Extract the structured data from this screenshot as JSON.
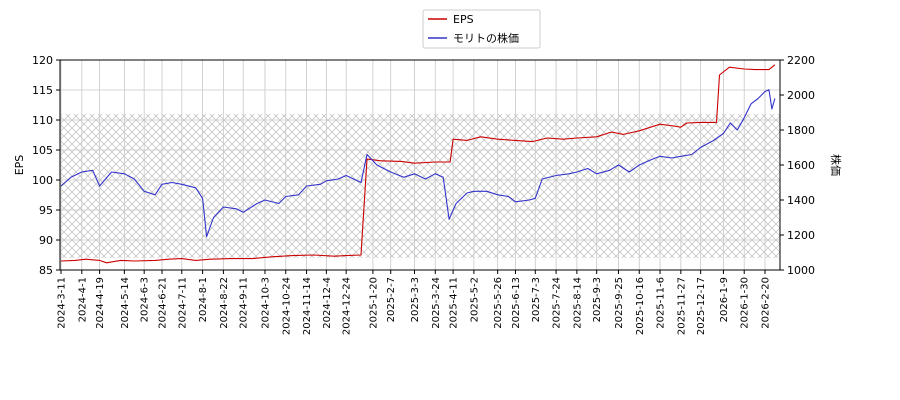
{
  "chart_data": {
    "type": "line",
    "title": "",
    "legend": {
      "placement": "top-center",
      "entries": [
        {
          "name": "EPS",
          "color": "#cc0000"
        },
        {
          "name": "モリトの株価",
          "color": "#3333cc"
        }
      ]
    },
    "grid": true,
    "x_tick_labels": [
      "2024-3-11",
      "2024-4-1",
      "2024-4-19",
      "2024-5-14",
      "2024-6-3",
      "2024-6-21",
      "2024-7-11",
      "2024-8-1",
      "2024-8-22",
      "2024-9-11",
      "2024-10-3",
      "2024-10-24",
      "2024-11-14",
      "2024-12-4",
      "2024-12-24",
      "2025-1-20",
      "2025-2-7",
      "2025-3-3",
      "2025-3-24",
      "2025-4-11",
      "2025-5-2",
      "2025-5-26",
      "2025-6-13",
      "2025-7-3",
      "2025-7-24",
      "2025-8-14",
      "2025-9-3",
      "2025-9-25",
      "2025-10-16",
      "2025-11-6",
      "2025-11-27",
      "2025-12-17",
      "2026-1-9",
      "2026-1-30",
      "2026-2-20"
    ],
    "left_axis": {
      "label": "EPS",
      "ylim": [
        85,
        120
      ],
      "ticks": [
        85,
        90,
        95,
        100,
        105,
        110,
        115,
        120
      ]
    },
    "right_axis": {
      "label": "株価",
      "ylim": [
        1000,
        2200
      ],
      "ticks": [
        1000,
        1200,
        1400,
        1600,
        1800,
        2000,
        2200
      ]
    },
    "series": [
      {
        "name": "EPS",
        "axis": "left",
        "color": "#cc0000",
        "points": [
          [
            "2024-3-11",
            86.5
          ],
          [
            "2024-3-25",
            86.6
          ],
          [
            "2024-4-5",
            86.8
          ],
          [
            "2024-4-19",
            86.6
          ],
          [
            "2024-4-26",
            86.2
          ],
          [
            "2024-5-10",
            86.6
          ],
          [
            "2024-5-24",
            86.5
          ],
          [
            "2024-6-14",
            86.6
          ],
          [
            "2024-6-28",
            86.8
          ],
          [
            "2024-7-11",
            86.9
          ],
          [
            "2024-7-25",
            86.6
          ],
          [
            "2024-8-9",
            86.8
          ],
          [
            "2024-8-30",
            86.9
          ],
          [
            "2024-9-20",
            86.9
          ],
          [
            "2024-10-10",
            87.2
          ],
          [
            "2024-10-31",
            87.4
          ],
          [
            "2024-11-21",
            87.5
          ],
          [
            "2024-12-12",
            87.3
          ],
          [
            "2024-12-24",
            87.4
          ],
          [
            "2025-1-8",
            87.5
          ],
          [
            "2025-1-14",
            103.5
          ],
          [
            "2025-1-28",
            103.2
          ],
          [
            "2025-2-18",
            103.1
          ],
          [
            "2025-3-3",
            102.8
          ],
          [
            "2025-3-24",
            103.0
          ],
          [
            "2025-4-8",
            103.0
          ],
          [
            "2025-4-11",
            106.8
          ],
          [
            "2025-4-25",
            106.6
          ],
          [
            "2025-5-9",
            107.2
          ],
          [
            "2025-5-26",
            106.8
          ],
          [
            "2025-6-13",
            106.6
          ],
          [
            "2025-6-30",
            106.4
          ],
          [
            "2025-7-15",
            107.0
          ],
          [
            "2025-7-31",
            106.8
          ],
          [
            "2025-8-14",
            107.0
          ],
          [
            "2025-9-3",
            107.2
          ],
          [
            "2025-9-18",
            108.0
          ],
          [
            "2025-9-30",
            107.6
          ],
          [
            "2025-10-16",
            108.2
          ],
          [
            "2025-11-6",
            109.3
          ],
          [
            "2025-11-20",
            109.0
          ],
          [
            "2025-11-27",
            108.8
          ],
          [
            "2025-12-3",
            109.5
          ],
          [
            "2025-12-17",
            109.6
          ],
          [
            "2026-1-2",
            109.6
          ],
          [
            "2026-1-5",
            117.5
          ],
          [
            "2026-1-15",
            118.8
          ],
          [
            "2026-1-30",
            118.5
          ],
          [
            "2026-2-10",
            118.4
          ],
          [
            "2026-2-24",
            118.4
          ],
          [
            "2026-3-2",
            119.2
          ]
        ]
      },
      {
        "name": "モリトの株価",
        "axis": "right",
        "color": "#3333cc",
        "points": [
          [
            "2024-3-11",
            1480
          ],
          [
            "2024-3-21",
            1530
          ],
          [
            "2024-4-1",
            1560
          ],
          [
            "2024-4-12",
            1570
          ],
          [
            "2024-4-19",
            1480
          ],
          [
            "2024-5-1",
            1560
          ],
          [
            "2024-5-14",
            1550
          ],
          [
            "2024-5-24",
            1520
          ],
          [
            "2024-6-3",
            1450
          ],
          [
            "2024-6-14",
            1430
          ],
          [
            "2024-6-21",
            1490
          ],
          [
            "2024-7-1",
            1500
          ],
          [
            "2024-7-11",
            1490
          ],
          [
            "2024-7-25",
            1470
          ],
          [
            "2024-8-1",
            1410
          ],
          [
            "2024-8-5",
            1190
          ],
          [
            "2024-8-12",
            1300
          ],
          [
            "2024-8-22",
            1360
          ],
          [
            "2024-9-4",
            1350
          ],
          [
            "2024-9-11",
            1330
          ],
          [
            "2024-9-25",
            1380
          ],
          [
            "2024-10-3",
            1400
          ],
          [
            "2024-10-17",
            1380
          ],
          [
            "2024-10-24",
            1420
          ],
          [
            "2024-11-6",
            1430
          ],
          [
            "2024-11-14",
            1480
          ],
          [
            "2024-11-28",
            1490
          ],
          [
            "2024-12-4",
            1510
          ],
          [
            "2024-12-16",
            1520
          ],
          [
            "2024-12-24",
            1540
          ],
          [
            "2025-1-8",
            1500
          ],
          [
            "2025-1-14",
            1660
          ],
          [
            "2025-1-24",
            1600
          ],
          [
            "2025-2-7",
            1560
          ],
          [
            "2025-2-20",
            1530
          ],
          [
            "2025-3-3",
            1550
          ],
          [
            "2025-3-14",
            1520
          ],
          [
            "2025-3-24",
            1550
          ],
          [
            "2025-4-1",
            1530
          ],
          [
            "2025-4-7",
            1290
          ],
          [
            "2025-4-14",
            1380
          ],
          [
            "2025-4-25",
            1440
          ],
          [
            "2025-5-2",
            1450
          ],
          [
            "2025-5-15",
            1450
          ],
          [
            "2025-5-26",
            1430
          ],
          [
            "2025-6-6",
            1420
          ],
          [
            "2025-6-13",
            1390
          ],
          [
            "2025-6-27",
            1400
          ],
          [
            "2025-7-3",
            1410
          ],
          [
            "2025-7-10",
            1520
          ],
          [
            "2025-7-24",
            1540
          ],
          [
            "2025-8-6",
            1550
          ],
          [
            "2025-8-14",
            1560
          ],
          [
            "2025-8-25",
            1580
          ],
          [
            "2025-9-3",
            1550
          ],
          [
            "2025-9-16",
            1570
          ],
          [
            "2025-9-25",
            1600
          ],
          [
            "2025-10-6",
            1560
          ],
          [
            "2025-10-16",
            1600
          ],
          [
            "2025-10-28",
            1630
          ],
          [
            "2025-11-6",
            1650
          ],
          [
            "2025-11-18",
            1640
          ],
          [
            "2025-11-27",
            1650
          ],
          [
            "2025-12-8",
            1660
          ],
          [
            "2025-12-17",
            1700
          ],
          [
            "2025-12-30",
            1740
          ],
          [
            "2026-1-9",
            1780
          ],
          [
            "2026-1-16",
            1840
          ],
          [
            "2026-1-23",
            1800
          ],
          [
            "2026-1-30",
            1870
          ],
          [
            "2026-2-6",
            1950
          ],
          [
            "2026-2-13",
            1980
          ],
          [
            "2026-2-20",
            2020
          ],
          [
            "2026-2-24",
            2030
          ],
          [
            "2026-2-27",
            1920
          ],
          [
            "2026-3-2",
            1980
          ]
        ]
      }
    ]
  }
}
